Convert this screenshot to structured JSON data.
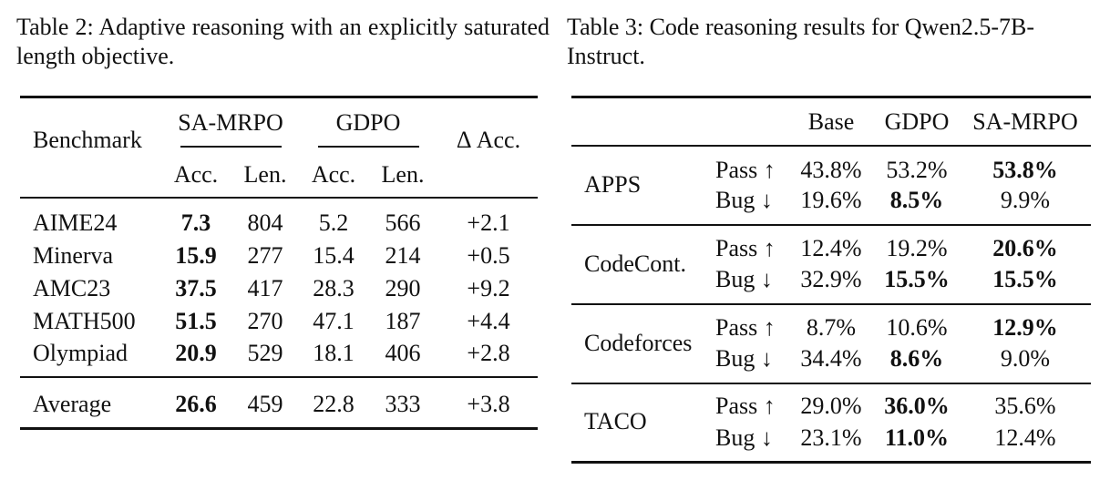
{
  "table2": {
    "caption": "Table 2: Adaptive reasoning with an explicitly saturated length objective.",
    "header": {
      "benchmark": "Benchmark",
      "group_a": "SA-MRPO",
      "group_b": "GDPO",
      "delta": "Δ Acc.",
      "acc": "Acc.",
      "len": "Len."
    },
    "rows": [
      {
        "benchmark": "AIME24",
        "sa_acc": "7.3",
        "sa_len": "804",
        "gd_acc": "5.2",
        "gd_len": "566",
        "delta": "+2.1"
      },
      {
        "benchmark": "Minerva",
        "sa_acc": "15.9",
        "sa_len": "277",
        "gd_acc": "15.4",
        "gd_len": "214",
        "delta": "+0.5"
      },
      {
        "benchmark": "AMC23",
        "sa_acc": "37.5",
        "sa_len": "417",
        "gd_acc": "28.3",
        "gd_len": "290",
        "delta": "+9.2"
      },
      {
        "benchmark": "MATH500",
        "sa_acc": "51.5",
        "sa_len": "270",
        "gd_acc": "47.1",
        "gd_len": "187",
        "delta": "+4.4"
      },
      {
        "benchmark": "Olympiad",
        "sa_acc": "20.9",
        "sa_len": "529",
        "gd_acc": "18.1",
        "gd_len": "406",
        "delta": "+2.8"
      }
    ],
    "average": {
      "benchmark": "Average",
      "sa_acc": "26.6",
      "sa_len": "459",
      "gd_acc": "22.8",
      "gd_len": "333",
      "delta": "+3.8"
    }
  },
  "table3": {
    "caption": "Table 3: Code reasoning results for Qwen2.5-7B-Instruct.",
    "header": {
      "base": "Base",
      "gdpo": "GDPO",
      "samrpo": "SA-MRPO"
    },
    "pass_label": "Pass ↑",
    "bug_label": "Bug ↓",
    "groups": [
      {
        "name": "APPS",
        "pass": {
          "base": "43.8%",
          "gdpo": "53.2%",
          "samrpo": "53.8%"
        },
        "bug": {
          "base": "19.6%",
          "gdpo": "8.5%",
          "samrpo": "9.9%"
        }
      },
      {
        "name": "CodeCont.",
        "pass": {
          "base": "12.4%",
          "gdpo": "19.2%",
          "samrpo": "20.6%"
        },
        "bug": {
          "base": "32.9%",
          "gdpo": "15.5%",
          "samrpo": "15.5%"
        }
      },
      {
        "name": "Codeforces",
        "pass": {
          "base": "8.7%",
          "gdpo": "10.6%",
          "samrpo": "12.9%"
        },
        "bug": {
          "base": "34.4%",
          "gdpo": "8.6%",
          "samrpo": "9.0%"
        }
      },
      {
        "name": "TACO",
        "pass": {
          "base": "29.0%",
          "gdpo": "36.0%",
          "samrpo": "35.6%"
        },
        "bug": {
          "base": "23.1%",
          "gdpo": "11.0%",
          "samrpo": "12.4%"
        }
      }
    ]
  }
}
